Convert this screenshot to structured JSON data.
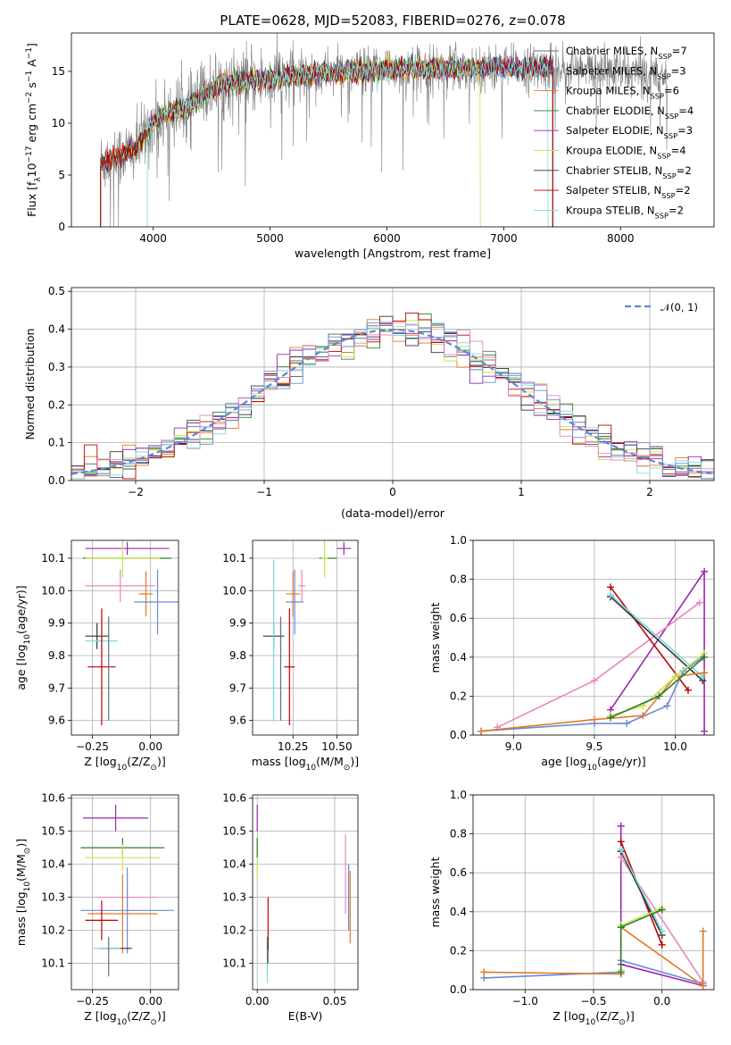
{
  "title": "PLATE=0628, MJD=52083, FIBERID=0276, z=0.078",
  "colors": {
    "Chabrier MILES": "#5b6f84",
    "Salpeter MILES": "#8c8c8c",
    "Kroupa MILES": "#e07a28",
    "Chabrier ELODIE": "#2e7d32",
    "Salpeter ELODIE": "#9c27b0",
    "Kroupa ELODIE": "#c9e44a",
    "Chabrier STELIB": "#333333",
    "Salpeter STELIB": "#c00000",
    "Kroupa STELIB": "#80d8dc",
    "blue": "#6a8ad8",
    "pink": "#e887c0",
    "green": "#6b9e3a",
    "olive": "#b8b800"
  },
  "chart_data": [
    {
      "type": "line",
      "id": "spectrum",
      "xlabel": "wavelength [Angstrom, rest frame]",
      "ylabel_main": "Flux [f",
      "ylabel_sub": "λ",
      "ylabel_rest": "10",
      "ylabel_exp": "−17",
      "ylabel_unit": " erg cm",
      "ylabel_exp2": "−2",
      "ylabel_unit2": " s",
      "ylabel_exp3": "−1",
      "ylabel_unit3": " A",
      "ylabel_exp4": "−1",
      "ylabel_end": "]",
      "xlim": [
        3300,
        8800
      ],
      "ylim": [
        0,
        18.7
      ],
      "xticks": [
        4000,
        5000,
        6000,
        7000,
        8000
      ],
      "yticks": [
        0,
        5,
        10,
        15
      ],
      "legend_position": "right",
      "series": [
        {
          "label": "Chabrier MILES, N",
          "sub": "SSP",
          "n": "=7",
          "key": "Chabrier MILES",
          "lw": 0.8
        },
        {
          "label": "Salpeter MILES, N",
          "sub": "SSP",
          "n": "=3",
          "key": "Salpeter MILES",
          "lw": 0.8
        },
        {
          "label": "Kroupa MILES, N",
          "sub": "SSP",
          "n": "=6",
          "key": "Kroupa MILES",
          "lw": 0.8
        },
        {
          "label": "Chabrier ELODIE, N",
          "sub": "SSP",
          "n": "=4",
          "key": "Chabrier ELODIE",
          "lw": 0.8
        },
        {
          "label": "Salpeter ELODIE, N",
          "sub": "SSP",
          "n": "=3",
          "key": "Salpeter ELODIE",
          "lw": 0.8
        },
        {
          "label": "Kroupa ELODIE, N",
          "sub": "SSP",
          "n": "=4",
          "key": "Kroupa ELODIE",
          "lw": 0.8
        },
        {
          "label": "Chabrier STELIB, N",
          "sub": "SSP",
          "n": "=2",
          "key": "Chabrier STELIB",
          "lw": 0.8
        },
        {
          "label": "Salpeter STELIB, N",
          "sub": "SSP",
          "n": "=2",
          "key": "Salpeter STELIB",
          "lw": 0.8
        },
        {
          "label": "Kroupa STELIB, N",
          "sub": "SSP",
          "n": "=2",
          "key": "Kroupa STELIB",
          "lw": 0.8
        }
      ],
      "continuum": {
        "x": [
          3550,
          3700,
          3850,
          4000,
          4100,
          4200,
          4300,
          4500,
          4700,
          5000,
          5200,
          5500,
          5800,
          6000,
          6300,
          6600,
          6800,
          7000,
          7200,
          7400,
          7600,
          7800,
          8000,
          8200,
          8400
        ],
        "y": [
          6.2,
          6.8,
          7.5,
          10.0,
          10.8,
          11.2,
          11.5,
          13.5,
          14.0,
          14.3,
          14.6,
          14.8,
          15.0,
          15.2,
          15.3,
          15.3,
          15.3,
          15.3,
          15.3,
          15.4,
          15.2,
          15.0,
          14.9,
          14.8,
          14.8
        ]
      },
      "model_range": [
        3550,
        7420
      ],
      "kroupa_elodie_range": [
        3550,
        6800
      ],
      "kroupa_stelib_range": [
        3950,
        7380
      ],
      "data_range": [
        3550,
        8400
      ]
    },
    {
      "type": "bar",
      "id": "residuals",
      "xlabel": "(data-model)/error",
      "ylabel": "Normed distribution",
      "xlim": [
        -2.5,
        2.5
      ],
      "ylim": [
        0,
        0.51
      ],
      "xticks": [
        -2,
        -1,
        0,
        1,
        2
      ],
      "yticks": [
        0.0,
        0.1,
        0.2,
        0.3,
        0.4,
        0.5
      ],
      "legend_label": "𝒩(0, 1)",
      "legend_position": "top-right",
      "bin_width": 0.1,
      "grid": true
    },
    {
      "type": "scatter",
      "id": "z-age",
      "xlabel": "Z [log",
      "xlabel_sub": "10",
      "xlabel_rest": "(Z/Z",
      "xlabel_sub2": "⊙",
      "xlabel_end": ")]",
      "ylabel": "age  [log",
      "ylabel_sub": "10",
      "ylabel_rest": "(age/yr)]",
      "xlim": [
        -0.34,
        0.12
      ],
      "ylim": [
        9.555,
        10.155
      ],
      "xticks": [
        -0.25,
        0.0
      ],
      "xtick_labels": [
        "−0.25",
        "0.00"
      ],
      "yticks": [
        9.6,
        9.7,
        9.8,
        9.9,
        10.0,
        10.1
      ],
      "grid": true,
      "points": [
        {
          "c": "Salpeter ELODIE",
          "x": -0.1,
          "xe": 0.18,
          "y": 10.13,
          "ye": 0.02
        },
        {
          "c": "Chabrier ELODIE",
          "x": -0.1,
          "xe": 0.19,
          "y": 10.1,
          "ye": 0.0
        },
        {
          "c": "Kroupa ELODIE",
          "x": -0.12,
          "xe": 0.16,
          "y": 10.1,
          "ye": 0.06
        },
        {
          "c": "pink",
          "x": -0.13,
          "xe": 0.15,
          "y": 10.015,
          "ye": 0.05
        },
        {
          "c": "Kroupa MILES",
          "x": -0.02,
          "xe": 0.03,
          "y": 9.99,
          "ye": 0.07
        },
        {
          "c": "blue",
          "x": 0.03,
          "xe": 0.1,
          "y": 9.965,
          "ye": 0.1
        },
        {
          "c": "Chabrier STELIB",
          "x": -0.23,
          "xe": 0.05,
          "y": 9.86,
          "ye": 0.04
        },
        {
          "c": "Kroupa STELIB",
          "x": -0.21,
          "xe": 0.07,
          "y": 9.845,
          "ye": 0.05
        },
        {
          "c": "Salpeter STELIB",
          "x": -0.21,
          "xe": 0.06,
          "y": 9.765,
          "ye": 0.18
        },
        {
          "c": "Chabrier MILES",
          "x": -0.18,
          "xe": 0.0,
          "y": 9.76,
          "ye": 0.16
        }
      ]
    },
    {
      "type": "scatter",
      "id": "mass-age",
      "xlabel": "mass [log",
      "xlabel_sub": "10",
      "xlabel_rest": "(M/M",
      "xlabel_sub2": "⊙",
      "xlabel_end": ")]",
      "xlim": [
        10.02,
        10.62
      ],
      "ylim": [
        9.555,
        10.155
      ],
      "xticks": [
        10.25,
        10.5
      ],
      "xtick_labels": [
        "10.25",
        "10.50"
      ],
      "yticks": [
        9.6,
        9.7,
        9.8,
        9.9,
        10.0,
        10.1
      ],
      "grid": true,
      "points": [
        {
          "c": "Salpeter ELODIE",
          "x": 10.54,
          "xe": 0.04,
          "y": 10.13,
          "ye": 0.02
        },
        {
          "c": "Chabrier ELODIE",
          "x": 10.45,
          "xe": 0.05,
          "y": 10.1,
          "ye": 0.0
        },
        {
          "c": "Kroupa ELODIE",
          "x": 10.43,
          "xe": 0.02,
          "y": 10.1,
          "ye": 0.06
        },
        {
          "c": "pink",
          "x": 10.3,
          "xe": 0.02,
          "y": 10.015,
          "ye": 0.05
        },
        {
          "c": "Kroupa MILES",
          "x": 10.25,
          "xe": 0.04,
          "y": 9.99,
          "ye": 0.07
        },
        {
          "c": "blue",
          "x": 10.26,
          "xe": 0.05,
          "y": 9.965,
          "ye": 0.1
        },
        {
          "c": "Chabrier STELIB",
          "x": 10.14,
          "xe": 0.06,
          "y": 9.86,
          "ye": 0.04
        },
        {
          "c": "Kroupa STELIB",
          "x": 10.14,
          "xe": 0.0,
          "y": 9.845,
          "ye": 0.25
        },
        {
          "c": "Salpeter STELIB",
          "x": 10.23,
          "xe": 0.03,
          "y": 9.765,
          "ye": 0.18
        },
        {
          "c": "Chabrier MILES",
          "x": 10.18,
          "xe": 0.0,
          "y": 9.76,
          "ye": 0.16
        }
      ]
    },
    {
      "type": "line",
      "id": "age-weight",
      "xlabel": "age  [log",
      "xlabel_sub": "10",
      "xlabel_rest": "(age/yr)]",
      "ylabel": "mass weight",
      "xlim": [
        8.75,
        10.24
      ],
      "ylim": [
        0.0,
        1.0
      ],
      "xticks": [
        9.0,
        9.5,
        10.0
      ],
      "xtick_labels": [
        "9.0",
        "9.5",
        "10.0"
      ],
      "yticks": [
        0.0,
        0.2,
        0.4,
        0.6,
        0.8,
        1.0
      ],
      "grid": true,
      "series": [
        {
          "c": "Salpeter ELODIE",
          "x": [
            9.6,
            10.18,
            10.18
          ],
          "y": [
            0.13,
            0.84,
            0.02
          ]
        },
        {
          "c": "pink",
          "x": [
            8.9,
            9.5,
            10.15
          ],
          "y": [
            0.04,
            0.28,
            0.68
          ]
        },
        {
          "c": "Salpeter STELIB",
          "x": [
            9.6,
            10.08
          ],
          "y": [
            0.76,
            0.23
          ]
        },
        {
          "c": "Chabrier STELIB",
          "x": [
            9.6,
            10.17
          ],
          "y": [
            0.71,
            0.28
          ]
        },
        {
          "c": "Kroupa STELIB",
          "x": [
            9.6,
            10.17
          ],
          "y": [
            0.72,
            0.3
          ]
        },
        {
          "c": "blue",
          "x": [
            8.8,
            9.5,
            9.7,
            9.95,
            10.05,
            10.17
          ],
          "y": [
            0.02,
            0.06,
            0.06,
            0.15,
            0.33,
            0.4
          ]
        },
        {
          "c": "Kroupa MILES",
          "x": [
            8.8,
            9.5,
            9.8,
            10.0,
            10.18
          ],
          "y": [
            0.02,
            0.08,
            0.1,
            0.3,
            0.32
          ]
        },
        {
          "c": "Kroupa ELODIE",
          "x": [
            9.6,
            9.8,
            10.0,
            10.18
          ],
          "y": [
            0.1,
            0.15,
            0.3,
            0.42
          ]
        },
        {
          "c": "Chabrier ELODIE",
          "x": [
            9.6,
            9.9,
            10.18
          ],
          "y": [
            0.09,
            0.2,
            0.4
          ]
        }
      ]
    },
    {
      "type": "scatter",
      "id": "z-mass",
      "xlabel": "Z [log",
      "xlabel_sub": "10",
      "xlabel_rest": "(Z/Z",
      "xlabel_sub2": "⊙",
      "xlabel_end": ")]",
      "ylabel": "mass [log",
      "ylabel_sub": "10",
      "ylabel_rest": "(M/M",
      "ylabel_sub2": "⊙",
      "ylabel_end": ")]",
      "xlim": [
        -0.34,
        0.12
      ],
      "ylim": [
        10.02,
        10.61
      ],
      "xticks": [
        -0.25,
        0.0
      ],
      "xtick_labels": [
        "−0.25",
        "0.00"
      ],
      "yticks": [
        10.1,
        10.2,
        10.3,
        10.4,
        10.5,
        10.6
      ],
      "grid": true,
      "points": [
        {
          "c": "Salpeter ELODIE",
          "x": -0.15,
          "xe": 0.14,
          "y": 10.54,
          "ye": 0.04
        },
        {
          "c": "Chabrier ELODIE",
          "x": -0.12,
          "xe": 0.18,
          "y": 10.45,
          "ye": 0.03
        },
        {
          "c": "Kroupa ELODIE",
          "x": -0.12,
          "xe": 0.16,
          "y": 10.42,
          "ye": 0.04
        },
        {
          "c": "pink",
          "x": -0.1,
          "xe": 0.13,
          "y": 10.3,
          "ye": 0.04
        },
        {
          "c": "Kroupa MILES",
          "x": -0.12,
          "xe": 0.15,
          "y": 10.25,
          "ye": 0.12
        },
        {
          "c": "blue",
          "x": -0.1,
          "xe": 0.2,
          "y": 10.26,
          "ye": 0.13
        },
        {
          "c": "Salpeter STELIB",
          "x": -0.21,
          "xe": 0.07,
          "y": 10.23,
          "ye": 0.06
        },
        {
          "c": "Chabrier STELIB",
          "x": -0.15,
          "xe": 0.07,
          "y": 10.145,
          "ye": 0.0
        },
        {
          "c": "Kroupa STELIB",
          "x": -0.19,
          "xe": 0.06,
          "y": 10.145,
          "ye": 0.0
        },
        {
          "c": "Chabrier MILES",
          "x": -0.18,
          "xe": 0.0,
          "y": 10.12,
          "ye": 0.06
        }
      ]
    },
    {
      "type": "scatter",
      "id": "ebv-mass",
      "xlabel": "E(B-V)",
      "xlim": [
        -0.003,
        0.065
      ],
      "ylim": [
        10.02,
        10.61
      ],
      "xticks": [
        0.0,
        0.05
      ],
      "xtick_labels": [
        "0.00",
        "0.05"
      ],
      "yticks": [
        10.1,
        10.2,
        10.3,
        10.4,
        10.5,
        10.6
      ],
      "grid": true,
      "points": [
        {
          "c": "Salpeter ELODIE",
          "x": 0.0,
          "xe": 0.0,
          "y": 10.54,
          "ye": 0.04
        },
        {
          "c": "Kroupa ELODIE",
          "x": 0.0,
          "xe": 0.0,
          "y": 10.42,
          "ye": 0.06
        },
        {
          "c": "Chabrier ELODIE",
          "x": 0.0,
          "xe": 0.0,
          "y": 10.45,
          "ye": 0.03
        },
        {
          "c": "pink",
          "x": 0.057,
          "xe": 0.0,
          "y": 10.37,
          "ye": 0.12
        },
        {
          "c": "Kroupa MILES",
          "x": 0.06,
          "xe": 0.0,
          "y": 10.27,
          "ye": 0.11
        },
        {
          "c": "blue",
          "x": 0.059,
          "xe": 0.0,
          "y": 10.3,
          "ye": 0.1
        },
        {
          "c": "Salpeter STELIB",
          "x": 0.007,
          "xe": 0.0,
          "y": 10.22,
          "ye": 0.08
        },
        {
          "c": "Kroupa STELIB",
          "x": 0.0065,
          "xe": 0.0,
          "y": 10.11,
          "ye": 0.07
        },
        {
          "c": "Chabrier STELIB",
          "x": 0.0068,
          "xe": 0.0,
          "y": 10.14,
          "ye": 0.04
        }
      ]
    },
    {
      "type": "line",
      "id": "z-weight",
      "xlabel": "Z [log",
      "xlabel_sub": "10",
      "xlabel_rest": "(Z/Z",
      "xlabel_sub2": "⊙",
      "xlabel_end": ")]",
      "ylabel": "mass weight",
      "xlim": [
        -1.38,
        0.38
      ],
      "ylim": [
        0.0,
        1.0
      ],
      "xticks": [
        -1.0,
        -0.5,
        0.0
      ],
      "xtick_labels": [
        "−1.0",
        "−0.5",
        "0.0"
      ],
      "yticks": [
        0.0,
        0.2,
        0.4,
        0.6,
        0.8,
        1.0
      ],
      "grid": true,
      "series": [
        {
          "c": "Salpeter ELODIE",
          "x": [
            -0.3,
            -0.3,
            0.3
          ],
          "y": [
            0.84,
            0.13,
            0.02
          ]
        },
        {
          "c": "pink",
          "x": [
            -0.3,
            0.3
          ],
          "y": [
            0.68,
            0.04
          ]
        },
        {
          "c": "Salpeter STELIB",
          "x": [
            -0.3,
            0.0
          ],
          "y": [
            0.76,
            0.23
          ]
        },
        {
          "c": "Chabrier STELIB",
          "x": [
            -0.3,
            0.0
          ],
          "y": [
            0.71,
            0.28
          ]
        },
        {
          "c": "Kroupa STELIB",
          "x": [
            -0.3,
            0.0
          ],
          "y": [
            0.72,
            0.3
          ]
        },
        {
          "c": "blue",
          "x": [
            -1.3,
            -0.3,
            -0.3,
            0.3
          ],
          "y": [
            0.06,
            0.09,
            0.15,
            0.03
          ]
        },
        {
          "c": "Kroupa MILES",
          "x": [
            -1.3,
            -0.3,
            -0.3,
            0.3,
            0.3
          ],
          "y": [
            0.09,
            0.08,
            0.32,
            0.02,
            0.3
          ]
        },
        {
          "c": "Kroupa ELODIE",
          "x": [
            -0.3,
            -0.3,
            0.0
          ],
          "y": [
            0.1,
            0.33,
            0.42
          ]
        },
        {
          "c": "Chabrier ELODIE",
          "x": [
            -0.3,
            -0.3,
            0.0
          ],
          "y": [
            0.09,
            0.32,
            0.41
          ]
        }
      ]
    }
  ]
}
